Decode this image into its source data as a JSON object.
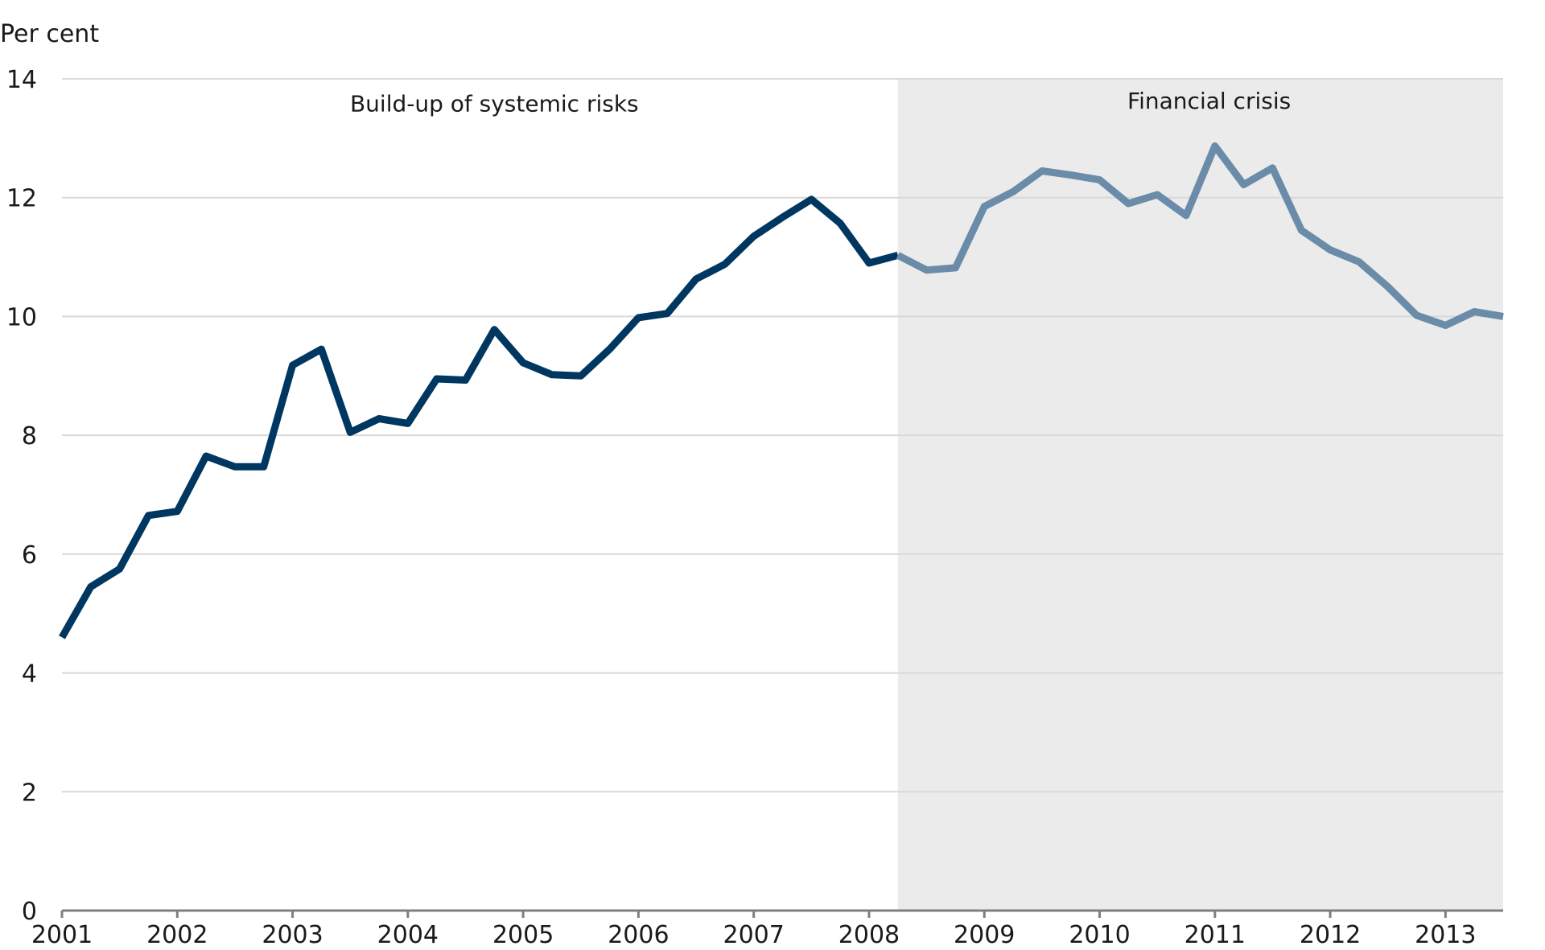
{
  "chart_data": {
    "type": "line",
    "ylabel": "Per cent",
    "ylim": [
      0,
      14
    ],
    "yticks": [
      0,
      2,
      4,
      6,
      8,
      10,
      12,
      14
    ],
    "xlim": [
      2001,
      2013.5
    ],
    "xticks": [
      "2001",
      "2002",
      "2003",
      "2004",
      "2005",
      "2006",
      "2007",
      "2008",
      "2009",
      "2010",
      "2011",
      "2012",
      "2013"
    ],
    "grid": true,
    "shaded_regions": [
      {
        "label": "Financial crisis",
        "x_start": 2008.25,
        "x_end": 2013.5,
        "color": "#ebebeb"
      }
    ],
    "annotations": [
      {
        "text": "Build-up of systemic risks",
        "x": 2004.75,
        "y": 13.45
      },
      {
        "text": "Financial crisis",
        "x": 2010.95,
        "y": 13.5
      }
    ],
    "series": [
      {
        "color": "#003761",
        "x": [
          2001.0,
          2001.25,
          2001.5,
          2001.75,
          2002.0,
          2002.25,
          2002.5,
          2002.75,
          2003.0,
          2003.25,
          2003.5,
          2003.75,
          2004.0,
          2004.25,
          2004.5,
          2004.75,
          2005.0,
          2005.25,
          2005.5,
          2005.75,
          2006.0,
          2006.25,
          2006.5,
          2006.75,
          2007.0,
          2007.25,
          2007.5,
          2007.75,
          2008.0,
          2008.25
        ],
        "values": [
          4.6,
          5.45,
          5.75,
          6.65,
          6.72,
          7.65,
          7.47,
          7.47,
          9.18,
          9.45,
          8.05,
          8.28,
          8.2,
          8.95,
          8.93,
          9.78,
          9.22,
          9.02,
          9.0,
          9.45,
          9.98,
          10.05,
          10.63,
          10.88,
          11.35,
          11.67,
          11.97,
          11.57,
          10.9,
          11.03
        ]
      },
      {
        "color": "#6a8ca9",
        "x": [
          2008.25,
          2008.5,
          2008.75,
          2009.0,
          2009.25,
          2009.5,
          2009.75,
          2010.0,
          2010.25,
          2010.5,
          2010.75,
          2011.0,
          2011.25,
          2011.5,
          2011.75,
          2012.0,
          2012.25,
          2012.5,
          2012.75,
          2013.0,
          2013.25,
          2013.5
        ],
        "values": [
          11.03,
          10.78,
          10.82,
          11.85,
          12.1,
          12.45,
          12.38,
          12.3,
          11.9,
          12.05,
          11.7,
          12.87,
          12.22,
          12.5,
          11.45,
          11.12,
          10.92,
          10.5,
          10.02,
          9.85,
          10.08,
          10.0
        ]
      }
    ]
  }
}
